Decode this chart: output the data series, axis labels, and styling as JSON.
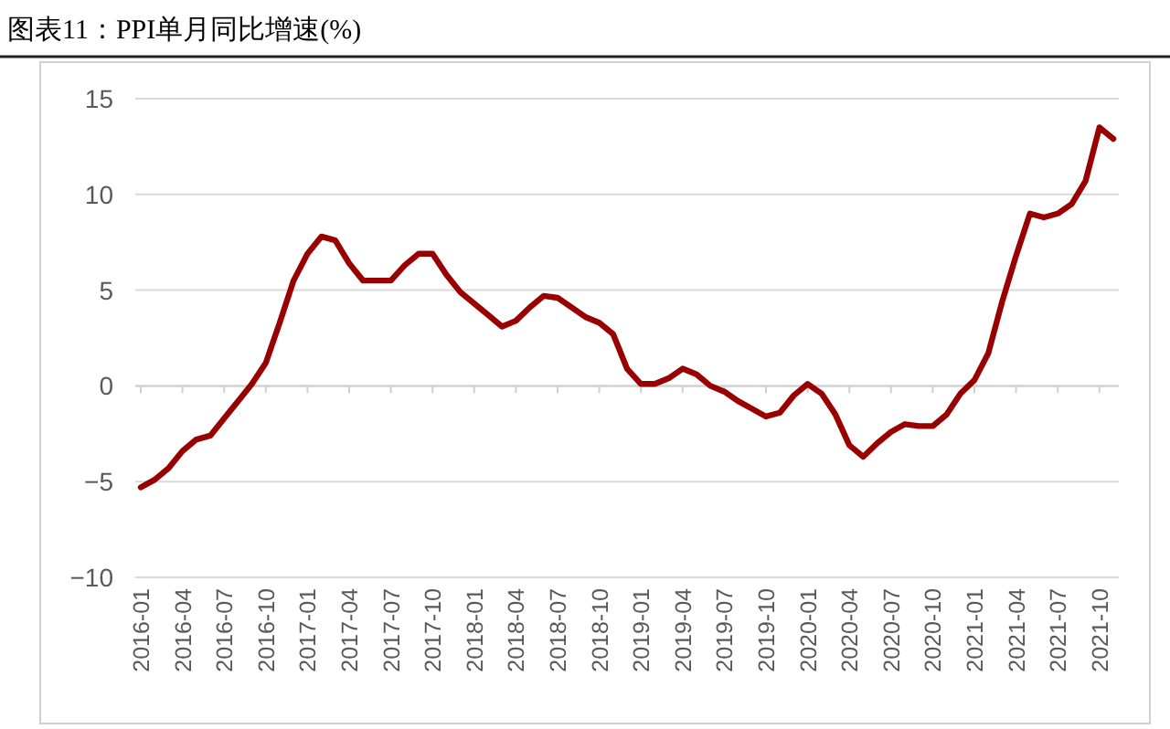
{
  "chart_data": {
    "type": "line",
    "title": "图表11：PPI单月同比增速(%)",
    "categories": [
      "2016-01",
      null,
      null,
      "2016-04",
      null,
      null,
      "2016-07",
      null,
      null,
      "2016-10",
      null,
      null,
      "2017-01",
      null,
      null,
      "2017-04",
      null,
      null,
      "2017-07",
      null,
      null,
      "2017-10",
      null,
      null,
      "2018-01",
      null,
      null,
      "2018-04",
      null,
      null,
      "2018-07",
      null,
      null,
      "2018-10",
      null,
      null,
      "2019-01",
      null,
      null,
      "2019-04",
      null,
      null,
      "2019-07",
      null,
      null,
      "2019-10",
      null,
      null,
      "2020-01",
      null,
      null,
      "2020-04",
      null,
      null,
      "2020-07",
      null,
      null,
      "2020-10",
      null,
      null,
      "2021-01",
      null,
      null,
      "2021-04",
      null,
      null,
      "2021-07",
      null,
      null,
      "2021-10",
      null
    ],
    "series": [
      {
        "color": "#990000",
        "values": [
          -5.3,
          -4.9,
          -4.3,
          -3.4,
          -2.8,
          -2.6,
          -1.7,
          -0.8,
          0.1,
          1.2,
          3.3,
          5.5,
          6.9,
          7.8,
          7.6,
          6.4,
          5.5,
          5.5,
          5.5,
          6.3,
          6.9,
          6.9,
          5.8,
          4.9,
          4.3,
          3.7,
          3.1,
          3.4,
          4.1,
          4.7,
          4.6,
          4.1,
          3.6,
          3.3,
          2.7,
          0.9,
          0.1,
          0.1,
          0.4,
          0.9,
          0.6,
          0.0,
          -0.3,
          -0.8,
          -1.2,
          -1.6,
          -1.4,
          -0.5,
          0.1,
          -0.4,
          -1.5,
          -3.1,
          -3.7,
          -3.0,
          -2.4,
          -2.0,
          -2.1,
          -2.1,
          -1.5,
          -0.4,
          0.3,
          1.7,
          4.4,
          6.8,
          9.0,
          8.8,
          9.0,
          9.5,
          10.7,
          13.5,
          12.9
        ]
      }
    ],
    "ylim": [
      -10,
      15
    ],
    "yticks": [
      {
        "value": -10,
        "label": "−10"
      },
      {
        "value": -5,
        "label": "−5"
      },
      0,
      5,
      10,
      15
    ],
    "grid": "y"
  }
}
